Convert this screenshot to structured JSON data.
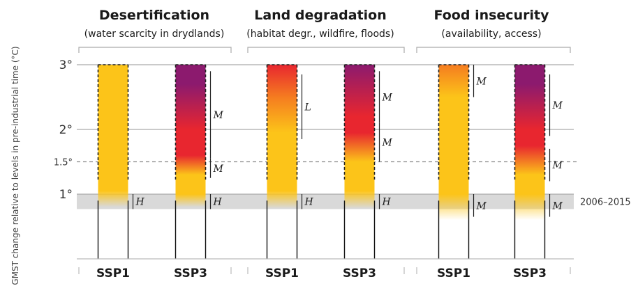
{
  "chart_data": {
    "type": "bar",
    "groups": [
      {
        "title": "Desertification",
        "subtitle": "(water scarcity in drydlands)"
      },
      {
        "title": "Land degradation",
        "subtitle": "(habitat degr., wildfire, floods)"
      },
      {
        "title": "Food insecurity",
        "subtitle": "(availability, access)"
      }
    ],
    "categories": [
      "SSP1",
      "SSP3",
      "SSP1",
      "SSP3",
      "SSP1",
      "SSP3"
    ],
    "ylabel": "GMST change relative to levels in pre-industrial time (°C)",
    "ylim": [
      0,
      3
    ],
    "yticks": [
      {
        "value": 1,
        "label": "1°"
      },
      {
        "value": 1.5,
        "label": "1.5°"
      },
      {
        "value": 2,
        "label": "2°"
      },
      {
        "value": 3,
        "label": "3°"
      }
    ],
    "reference_band": {
      "label": "2006–2015",
      "from": 0.77,
      "to": 1.0
    },
    "colors": {
      "yellow": "#fcc419",
      "orange": "#f57c20",
      "red": "#e8262f",
      "purple": "#8c1a6e",
      "band": "#d9d9d9"
    },
    "series": [
      {
        "category": "SSP1",
        "group": 0,
        "top": 3.0,
        "stops": [
          {
            "t": 0.8,
            "color": "yellow",
            "opacity": 0
          },
          {
            "t": 1.05,
            "color": "yellow",
            "opacity": 1
          },
          {
            "t": 3.0,
            "color": "yellow",
            "opacity": 1
          }
        ],
        "confidence": [
          {
            "from": 0.77,
            "to": 1.0,
            "label": "H"
          }
        ]
      },
      {
        "category": "SSP3",
        "group": 0,
        "top": 3.0,
        "stops": [
          {
            "t": 0.8,
            "color": "yellow",
            "opacity": 0
          },
          {
            "t": 1.0,
            "color": "yellow",
            "opacity": 1
          },
          {
            "t": 1.3,
            "color": "yellow",
            "opacity": 1
          },
          {
            "t": 1.6,
            "color": "red",
            "opacity": 1
          },
          {
            "t": 2.0,
            "color": "red",
            "opacity": 1
          },
          {
            "t": 2.7,
            "color": "purple",
            "opacity": 1
          },
          {
            "t": 3.0,
            "color": "purple",
            "opacity": 1
          }
        ],
        "confidence": [
          {
            "from": 0.77,
            "to": 1.0,
            "label": "H"
          },
          {
            "from": 1.25,
            "to": 1.55,
            "label": "M"
          },
          {
            "from": 1.55,
            "to": 2.9,
            "label": "M"
          }
        ]
      },
      {
        "category": "SSP1",
        "group": 1,
        "top": 3.0,
        "stops": [
          {
            "t": 0.78,
            "color": "yellow",
            "opacity": 0
          },
          {
            "t": 1.05,
            "color": "yellow",
            "opacity": 1
          },
          {
            "t": 1.95,
            "color": "yellow",
            "opacity": 1
          },
          {
            "t": 2.5,
            "color": "orange",
            "opacity": 1
          },
          {
            "t": 3.0,
            "color": "red",
            "opacity": 1
          }
        ],
        "confidence": [
          {
            "from": 0.77,
            "to": 1.0,
            "label": "H"
          },
          {
            "from": 1.85,
            "to": 2.85,
            "label": "L"
          }
        ]
      },
      {
        "category": "SSP3",
        "group": 1,
        "top": 3.0,
        "stops": [
          {
            "t": 0.78,
            "color": "yellow",
            "opacity": 0
          },
          {
            "t": 1.05,
            "color": "yellow",
            "opacity": 1
          },
          {
            "t": 1.5,
            "color": "yellow",
            "opacity": 1
          },
          {
            "t": 1.95,
            "color": "red",
            "opacity": 1
          },
          {
            "t": 2.2,
            "color": "red",
            "opacity": 1
          },
          {
            "t": 3.0,
            "color": "purple",
            "opacity": 1
          }
        ],
        "confidence": [
          {
            "from": 0.77,
            "to": 1.0,
            "label": "H"
          },
          {
            "from": 1.5,
            "to": 2.1,
            "label": "M"
          },
          {
            "from": 2.1,
            "to": 2.9,
            "label": "M"
          }
        ]
      },
      {
        "category": "SSP1",
        "group": 2,
        "top": 3.0,
        "stops": [
          {
            "t": 0.6,
            "color": "yellow",
            "opacity": 0
          },
          {
            "t": 1.0,
            "color": "yellow",
            "opacity": 1
          },
          {
            "t": 2.5,
            "color": "yellow",
            "opacity": 1
          },
          {
            "t": 3.0,
            "color": "orange",
            "opacity": 1
          }
        ],
        "confidence": [
          {
            "from": 0.65,
            "to": 1.0,
            "label": "M"
          },
          {
            "from": 2.5,
            "to": 3.0,
            "label": "M"
          }
        ]
      },
      {
        "category": "SSP3",
        "group": 2,
        "top": 3.0,
        "stops": [
          {
            "t": 0.6,
            "color": "yellow",
            "opacity": 0
          },
          {
            "t": 1.0,
            "color": "yellow",
            "opacity": 1
          },
          {
            "t": 1.3,
            "color": "yellow",
            "opacity": 1
          },
          {
            "t": 1.75,
            "color": "red",
            "opacity": 1
          },
          {
            "t": 2.0,
            "color": "red",
            "opacity": 1
          },
          {
            "t": 2.7,
            "color": "purple",
            "opacity": 1
          },
          {
            "t": 3.0,
            "color": "purple",
            "opacity": 1
          }
        ],
        "confidence": [
          {
            "from": 0.65,
            "to": 1.0,
            "label": "M"
          },
          {
            "from": 1.2,
            "to": 1.7,
            "label": "M"
          },
          {
            "from": 1.9,
            "to": 2.85,
            "label": "M"
          }
        ]
      }
    ]
  }
}
